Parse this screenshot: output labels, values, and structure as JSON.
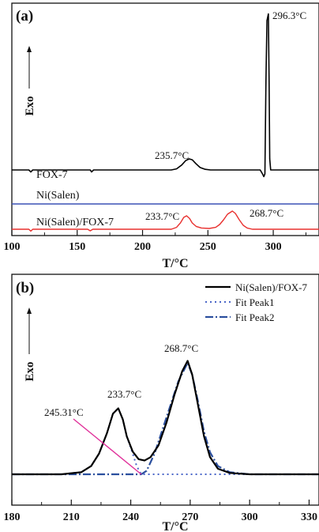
{
  "chart_data": [
    {
      "panel": "(a)",
      "type": "line",
      "xlabel": "T/°C",
      "ylabel": "Exo",
      "xlim": [
        100,
        335
      ],
      "xticks": [
        100,
        150,
        200,
        250,
        300
      ],
      "series": [
        {
          "name": "FOX-7",
          "color": "#000000",
          "points": [
            [
              100,
              0
            ],
            [
              113,
              0
            ],
            [
              114.5,
              -0.18
            ],
            [
              116,
              0
            ],
            [
              160,
              0
            ],
            [
              161,
              -0.18
            ],
            [
              162.5,
              0
            ],
            [
              222,
              0
            ],
            [
              226,
              0.1
            ],
            [
              230,
              0.45
            ],
            [
              233,
              0.85
            ],
            [
              235.7,
              1.0
            ],
            [
              238,
              0.92
            ],
            [
              241,
              0.55
            ],
            [
              244,
              0.22
            ],
            [
              248,
              0.06
            ],
            [
              252,
              0
            ],
            [
              290,
              0
            ],
            [
              291.5,
              -0.3
            ],
            [
              292.8,
              -0.6
            ],
            [
              293.6,
              -0.35
            ],
            [
              294.4,
              8
            ],
            [
              295.2,
              13.5
            ],
            [
              296.3,
              14.1
            ],
            [
              296.8,
              8
            ],
            [
              297.3,
              1
            ],
            [
              298,
              0
            ],
            [
              335,
              0
            ]
          ],
          "label": "FOX-7",
          "peak_label": "235.7°C",
          "peak_label2": "296.3°C"
        },
        {
          "name": "Ni(Salen)",
          "color": "#3b52b6",
          "points": [
            [
              100,
              0
            ],
            [
              335,
              0
            ]
          ],
          "label": "Ni(Salen)"
        },
        {
          "name": "Ni(Salen)/FOX-7",
          "color": "#e8302e",
          "points": [
            [
              100,
              0
            ],
            [
              113,
              0
            ],
            [
              114.5,
              -0.12
            ],
            [
              116,
              0
            ],
            [
              158,
              0
            ],
            [
              160,
              -0.1
            ],
            [
              162,
              0
            ],
            [
              222,
              0
            ],
            [
              226,
              0.12
            ],
            [
              229,
              0.4
            ],
            [
              231.5,
              0.75
            ],
            [
              233.7,
              0.85
            ],
            [
              236,
              0.68
            ],
            [
              238,
              0.4
            ],
            [
              241,
              0.18
            ],
            [
              245,
              0.08
            ],
            [
              251,
              0.05
            ],
            [
              256,
              0.12
            ],
            [
              259,
              0.3
            ],
            [
              262,
              0.6
            ],
            [
              265,
              0.95
            ],
            [
              268.7,
              1.15
            ],
            [
              271,
              1.0
            ],
            [
              274,
              0.6
            ],
            [
              277,
              0.25
            ],
            [
              280,
              0.08
            ],
            [
              284,
              0
            ],
            [
              335,
              0
            ]
          ],
          "label": "Ni(Salen)/FOX-7",
          "peak_label": "233.7°C",
          "peak_label2": "268.7°C"
        }
      ]
    },
    {
      "panel": "(b)",
      "type": "line",
      "xlabel": "T/°C",
      "ylabel": "Exo",
      "xlim": [
        180,
        335
      ],
      "xticks": [
        180,
        210,
        240,
        270,
        300,
        330
      ],
      "series": [
        {
          "name": "Ni(Salen)/FOX-7",
          "style": "solid",
          "color": "#000000",
          "points": [
            [
              180,
              0
            ],
            [
              205,
              0
            ],
            [
              215,
              0.03
            ],
            [
              220,
              0.12
            ],
            [
              224,
              0.3
            ],
            [
              228,
              0.6
            ],
            [
              231,
              0.88
            ],
            [
              233.7,
              0.96
            ],
            [
              236,
              0.8
            ],
            [
              238,
              0.55
            ],
            [
              241,
              0.33
            ],
            [
              244,
              0.22
            ],
            [
              247,
              0.2
            ],
            [
              250,
              0.25
            ],
            [
              254,
              0.42
            ],
            [
              258,
              0.75
            ],
            [
              262,
              1.15
            ],
            [
              266,
              1.5
            ],
            [
              268.7,
              1.65
            ],
            [
              271,
              1.45
            ],
            [
              274,
              1.0
            ],
            [
              277,
              0.55
            ],
            [
              280,
              0.25
            ],
            [
              284,
              0.08
            ],
            [
              290,
              0.02
            ],
            [
              300,
              0
            ],
            [
              335,
              0
            ]
          ]
        },
        {
          "name": "Fit Peak1",
          "style": "dotted",
          "color": "#4a66c8",
          "points": [
            [
              180,
              0
            ],
            [
              205,
              0
            ],
            [
              215,
              0.03
            ],
            [
              220,
              0.12
            ],
            [
              224,
              0.3
            ],
            [
              228,
              0.6
            ],
            [
              231,
              0.88
            ],
            [
              233.7,
              0.96
            ],
            [
              236,
              0.8
            ],
            [
              238,
              0.55
            ],
            [
              241,
              0.3
            ],
            [
              243,
              0.12
            ],
            [
              245.31,
              0
            ],
            [
              335,
              0
            ]
          ]
        },
        {
          "name": "Fit Peak2",
          "style": "dashdot",
          "color": "#2b4f9e",
          "points": [
            [
              180,
              0
            ],
            [
              240,
              0
            ],
            [
              245.31,
              0
            ],
            [
              248,
              0.05
            ],
            [
              252,
              0.3
            ],
            [
              256,
              0.65
            ],
            [
              260,
              1.0
            ],
            [
              264,
              1.35
            ],
            [
              268.7,
              1.62
            ],
            [
              271,
              1.45
            ],
            [
              274,
              1.05
            ],
            [
              277,
              0.62
            ],
            [
              280,
              0.32
            ],
            [
              284,
              0.12
            ],
            [
              290,
              0.03
            ],
            [
              300,
              0
            ],
            [
              335,
              0
            ]
          ]
        }
      ],
      "annotations": {
        "peak1": "233.7°C",
        "peak2": "268.7°C",
        "intersection": "245.31°C",
        "intersection_x": 245.31
      }
    }
  ]
}
